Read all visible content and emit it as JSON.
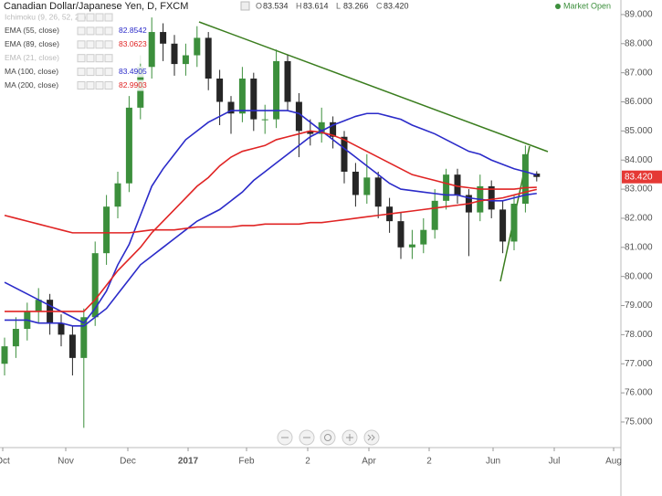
{
  "chart_data": {
    "type": "candlestick",
    "title": "Canadian Dollar/Japanese Yen, D, FXCM",
    "ohlc_labels": [
      "O",
      "83.534",
      "H",
      "83.614",
      "L",
      "83.266",
      "C",
      "83.420"
    ],
    "status": "Market Open",
    "hidden_indicators": [
      "Ichimoku (9, 26, 52, 26)",
      "EMA (21, close)"
    ],
    "up_color": "#3c8f3c",
    "down_color": "#262626",
    "last_price_label": "83.420",
    "last_price_color": "#e53935",
    "xlabels": [
      "Oct",
      "Nov",
      "Dec",
      "2017",
      "Feb",
      "2",
      "Apr",
      "2",
      "Jun",
      "Jul",
      "Aug"
    ],
    "ylim": [
      74.12,
      89.5
    ],
    "yticks": [
      {
        "value": 75,
        "label": "75.000"
      },
      {
        "value": 76,
        "label": "76.000"
      },
      {
        "value": 77,
        "label": "77.000"
      },
      {
        "value": 78,
        "label": "78.000"
      },
      {
        "value": 79,
        "label": "79.000"
      },
      {
        "value": 80,
        "label": "80.000"
      },
      {
        "value": 81,
        "label": "81.000"
      },
      {
        "value": 82,
        "label": "82.000"
      },
      {
        "value": 83,
        "label": "83.000"
      },
      {
        "value": 84,
        "label": "84.000"
      },
      {
        "value": 85,
        "label": "85.000"
      },
      {
        "value": 86,
        "label": "86.000"
      },
      {
        "value": 87,
        "label": "87.000"
      },
      {
        "value": 88,
        "label": "88.000"
      },
      {
        "value": 89,
        "label": "89.000"
      }
    ],
    "grid": false,
    "candles": [
      [
        77.0,
        77.9,
        76.6,
        77.6
      ],
      [
        77.6,
        78.6,
        77.2,
        78.2
      ],
      [
        78.2,
        79.1,
        77.8,
        78.8
      ],
      [
        78.8,
        79.6,
        78.4,
        79.2
      ],
      [
        79.2,
        79.4,
        78.0,
        78.4
      ],
      [
        78.4,
        78.7,
        77.6,
        78.0
      ],
      [
        78.0,
        78.3,
        76.6,
        77.2
      ],
      [
        77.2,
        78.9,
        74.8,
        78.6
      ],
      [
        78.6,
        81.2,
        78.3,
        80.8
      ],
      [
        80.8,
        82.8,
        80.4,
        82.4
      ],
      [
        82.4,
        83.6,
        82.0,
        83.2
      ],
      [
        83.2,
        86.2,
        82.9,
        85.8
      ],
      [
        85.8,
        87.6,
        85.4,
        87.2
      ],
      [
        87.2,
        88.9,
        86.8,
        88.4
      ],
      [
        88.4,
        88.7,
        87.4,
        88.0
      ],
      [
        88.0,
        88.3,
        86.9,
        87.3
      ],
      [
        87.3,
        88.0,
        86.9,
        87.6
      ],
      [
        87.6,
        88.6,
        87.2,
        88.2
      ],
      [
        88.2,
        88.4,
        86.4,
        86.8
      ],
      [
        86.8,
        87.1,
        85.2,
        86.0
      ],
      [
        86.0,
        86.2,
        84.9,
        85.6
      ],
      [
        85.6,
        87.2,
        85.3,
        86.8
      ],
      [
        86.8,
        87.0,
        85.0,
        85.4
      ],
      [
        85.4,
        85.9,
        84.9,
        85.4
      ],
      [
        85.4,
        87.8,
        85.1,
        87.4
      ],
      [
        87.4,
        87.6,
        85.7,
        86.0
      ],
      [
        86.0,
        86.3,
        84.1,
        85.0
      ],
      [
        85.0,
        85.4,
        84.5,
        84.9
      ],
      [
        84.9,
        85.8,
        84.6,
        85.3
      ],
      [
        85.3,
        85.5,
        84.4,
        84.8
      ],
      [
        84.8,
        85.0,
        83.2,
        83.6
      ],
      [
        83.6,
        83.9,
        82.4,
        82.8
      ],
      [
        82.8,
        84.2,
        82.5,
        83.4
      ],
      [
        83.4,
        83.6,
        82.0,
        82.4
      ],
      [
        82.4,
        82.7,
        81.5,
        81.9
      ],
      [
        81.9,
        82.2,
        80.6,
        81.0
      ],
      [
        81.0,
        81.6,
        80.6,
        81.1
      ],
      [
        81.1,
        82.0,
        80.8,
        81.6
      ],
      [
        81.6,
        83.0,
        81.3,
        82.6
      ],
      [
        82.6,
        83.7,
        82.3,
        83.5
      ],
      [
        83.5,
        83.7,
        82.5,
        82.8
      ],
      [
        82.8,
        83.0,
        80.7,
        82.2
      ],
      [
        82.2,
        83.5,
        81.9,
        83.1
      ],
      [
        83.1,
        83.3,
        82.0,
        82.3
      ],
      [
        82.3,
        82.6,
        80.8,
        81.2
      ],
      [
        81.2,
        82.8,
        80.9,
        82.5
      ],
      [
        82.5,
        84.5,
        82.2,
        84.2
      ],
      [
        83.534,
        83.614,
        83.266,
        83.42
      ]
    ],
    "series": [
      {
        "name": "EMA (55, close)",
        "color": "#2b2bc9",
        "value_label": "82.8542",
        "values": [
          79.8,
          79.6,
          79.4,
          79.2,
          79.0,
          78.8,
          78.6,
          78.4,
          78.9,
          79.5,
          80.4,
          81.1,
          82.1,
          83.1,
          83.7,
          84.2,
          84.7,
          85.0,
          85.3,
          85.5,
          85.7,
          85.7,
          85.7,
          85.7,
          85.7,
          85.7,
          85.6,
          85.3,
          85.0,
          84.7,
          84.4,
          84.1,
          83.8,
          83.5,
          83.2,
          83.0,
          82.95,
          82.9,
          82.85,
          82.8,
          82.8,
          82.7,
          82.65,
          82.6,
          82.6,
          82.7,
          82.8,
          82.854
        ]
      },
      {
        "name": "EMA (89, close)",
        "color": "#e02424",
        "value_label": "83.0623",
        "values": [
          78.8,
          78.8,
          78.8,
          78.8,
          78.8,
          78.8,
          78.8,
          78.8,
          79.2,
          79.7,
          80.2,
          80.6,
          81.0,
          81.5,
          81.9,
          82.3,
          82.7,
          83.1,
          83.4,
          83.8,
          84.1,
          84.3,
          84.4,
          84.5,
          84.7,
          84.8,
          84.9,
          85.0,
          84.95,
          84.85,
          84.7,
          84.5,
          84.3,
          84.1,
          83.9,
          83.7,
          83.5,
          83.4,
          83.3,
          83.2,
          83.1,
          83.05,
          83.0,
          83.0,
          83.0,
          83.0,
          83.05,
          83.0623
        ]
      },
      {
        "name": "MA (100, close)",
        "color": "#2b2bc9",
        "value_label": "83.4905",
        "values": [
          78.5,
          78.5,
          78.5,
          78.4,
          78.4,
          78.4,
          78.3,
          78.3,
          78.6,
          78.9,
          79.4,
          79.9,
          80.4,
          80.7,
          81.0,
          81.3,
          81.6,
          81.9,
          82.1,
          82.3,
          82.6,
          82.9,
          83.3,
          83.6,
          83.9,
          84.2,
          84.5,
          84.8,
          85.0,
          85.2,
          85.35,
          85.5,
          85.6,
          85.6,
          85.5,
          85.4,
          85.2,
          85.05,
          84.9,
          84.7,
          84.5,
          84.3,
          84.2,
          84.0,
          83.85,
          83.7,
          83.6,
          83.4905
        ]
      },
      {
        "name": "MA (200, close)",
        "color": "#e02424",
        "value_label": "82.9903",
        "values": [
          82.1,
          82.0,
          81.9,
          81.8,
          81.7,
          81.6,
          81.5,
          81.5,
          81.5,
          81.5,
          81.5,
          81.5,
          81.55,
          81.6,
          81.6,
          81.6,
          81.65,
          81.7,
          81.7,
          81.7,
          81.7,
          81.75,
          81.75,
          81.8,
          81.8,
          81.8,
          81.8,
          81.85,
          81.85,
          81.9,
          81.95,
          82.0,
          82.05,
          82.1,
          82.15,
          82.2,
          82.25,
          82.3,
          82.35,
          82.4,
          82.45,
          82.5,
          82.6,
          82.65,
          82.7,
          82.8,
          82.9,
          82.9903
        ]
      }
    ]
  }
}
